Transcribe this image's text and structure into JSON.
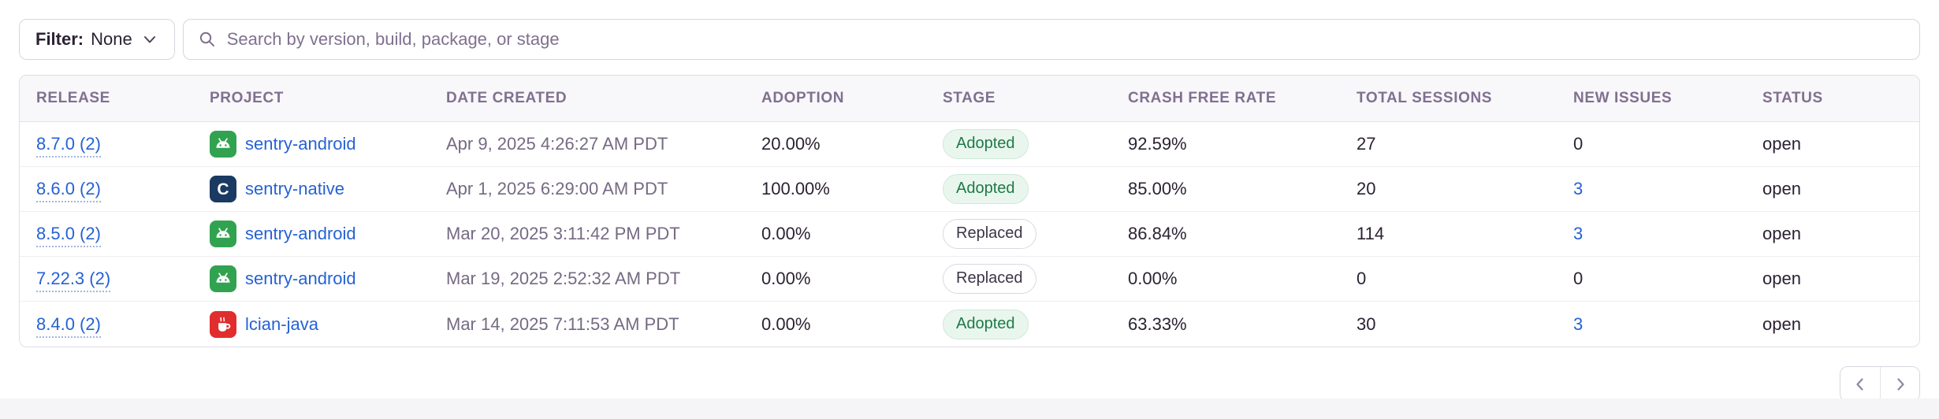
{
  "filter": {
    "label": "Filter:",
    "value": "None",
    "chevron_icon": "chevron-down-icon"
  },
  "search": {
    "placeholder": "Search by version, build, package, or stage",
    "icon": "search-icon"
  },
  "table": {
    "columns": [
      "RELEASE",
      "PROJECT",
      "DATE CREATED",
      "ADOPTION",
      "STAGE",
      "CRASH FREE RATE",
      "TOTAL SESSIONS",
      "NEW ISSUES",
      "STATUS"
    ],
    "rows": [
      {
        "release": "8.7.0 (2)",
        "project": "sentry-android",
        "project_icon": "android-platform-icon",
        "date_created": "Apr 9, 2025 4:26:27 AM PDT",
        "adoption": "20.00%",
        "stage": "Adopted",
        "crash_free_rate": "92.59%",
        "total_sessions": "27",
        "new_issues": "0",
        "new_issues_is_link": false,
        "status": "open"
      },
      {
        "release": "8.6.0 (2)",
        "project": "sentry-native",
        "project_icon": "native-platform-icon",
        "date_created": "Apr 1, 2025 6:29:00 AM PDT",
        "adoption": "100.00%",
        "stage": "Adopted",
        "crash_free_rate": "85.00%",
        "total_sessions": "20",
        "new_issues": "3",
        "new_issues_is_link": true,
        "status": "open"
      },
      {
        "release": "8.5.0 (2)",
        "project": "sentry-android",
        "project_icon": "android-platform-icon",
        "date_created": "Mar 20, 2025 3:11:42 PM PDT",
        "adoption": "0.00%",
        "stage": "Replaced",
        "crash_free_rate": "86.84%",
        "total_sessions": "114",
        "new_issues": "3",
        "new_issues_is_link": true,
        "status": "open"
      },
      {
        "release": "7.22.3 (2)",
        "project": "sentry-android",
        "project_icon": "android-platform-icon",
        "date_created": "Mar 19, 2025 2:52:32 AM PDT",
        "adoption": "0.00%",
        "stage": "Replaced",
        "crash_free_rate": "0.00%",
        "total_sessions": "0",
        "new_issues": "0",
        "new_issues_is_link": false,
        "status": "open"
      },
      {
        "release": "8.4.0 (2)",
        "project": "lcian-java",
        "project_icon": "java-platform-icon",
        "date_created": "Mar 14, 2025 7:11:53 AM PDT",
        "adoption": "0.00%",
        "stage": "Adopted",
        "crash_free_rate": "63.33%",
        "total_sessions": "30",
        "new_issues": "3",
        "new_issues_is_link": true,
        "status": "open"
      }
    ]
  },
  "pagination": {
    "previous_icon": "chevron-left-icon",
    "next_icon": "chevron-right-icon"
  },
  "colors": {
    "link_blue": "#2562d4",
    "text_dark": "#2b2233",
    "muted_purple": "#80708f",
    "date_text": "#756a83",
    "adopted_bg": "#e9f6ee",
    "adopted_text": "#1d7a46",
    "border_gray": "#d9d4df",
    "header_bg": "#f8f7fa",
    "android_green": "#31a350",
    "native_navy": "#1a3a62",
    "java_red": "#e12d2d"
  }
}
